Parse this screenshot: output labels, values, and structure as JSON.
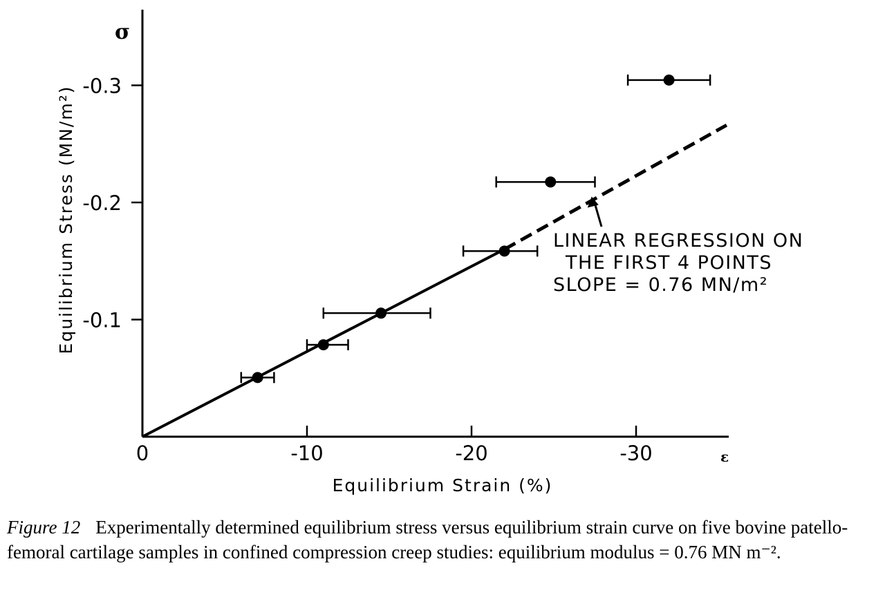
{
  "chart_data": {
    "type": "scatter",
    "ylabel": "Equilibrium  Stress  (MN/m²)",
    "y_symbol": "σ",
    "xlabel": "Equilibrium  Strain  (%)",
    "x_symbol": "ε",
    "xlim": [
      0,
      -36
    ],
    "ylim": [
      0,
      -0.36
    ],
    "x_ticks": [
      0,
      -10,
      -20,
      -30
    ],
    "x_tick_labels": [
      "0",
      "-10",
      "-20",
      "-30"
    ],
    "y_ticks": [
      -0.1,
      -0.2,
      -0.3
    ],
    "y_tick_labels": [
      "-0.1",
      "-0.2",
      "-0.3"
    ],
    "grid": false,
    "series": [
      {
        "type": "points_with_x_error",
        "points": [
          {
            "x": -7.0,
            "y": -0.0505,
            "xerr_low": -6.0,
            "xerr_high": -8.0
          },
          {
            "x": -11.0,
            "y": -0.0785,
            "xerr_low": -10.0,
            "xerr_high": -12.5
          },
          {
            "x": -14.5,
            "y": -0.1055,
            "xerr_low": -11.0,
            "xerr_high": -17.5
          },
          {
            "x": -22.0,
            "y": -0.1585,
            "xerr_low": -19.5,
            "xerr_high": -24.0
          },
          {
            "x": -24.8,
            "y": -0.2175,
            "xerr_low": -21.5,
            "xerr_high": -27.5
          },
          {
            "x": -32.0,
            "y": -0.3045,
            "xerr_low": -29.5,
            "xerr_high": -34.5
          }
        ]
      },
      {
        "type": "regression_line",
        "solid_from": [
          0,
          0
        ],
        "solid_to": [
          -22.0,
          -0.16
        ],
        "dashed_to": [
          -35.5,
          -0.266
        ]
      }
    ],
    "annotation": {
      "lines": [
        "LINEAR REGRESSION ON",
        "THE FIRST 4 POINTS",
        "SLOPE = 0.76  MN/m²"
      ],
      "arrow_target": [
        -27.3,
        -0.205
      ]
    }
  },
  "caption": {
    "label": "Figure 12",
    "text": "Experimentally determined equilibrium stress versus equilibrium strain curve on five bovine patello-femoral cartilage samples in confined compression creep studies: equilibrium modulus = 0.76 MN m⁻²."
  }
}
